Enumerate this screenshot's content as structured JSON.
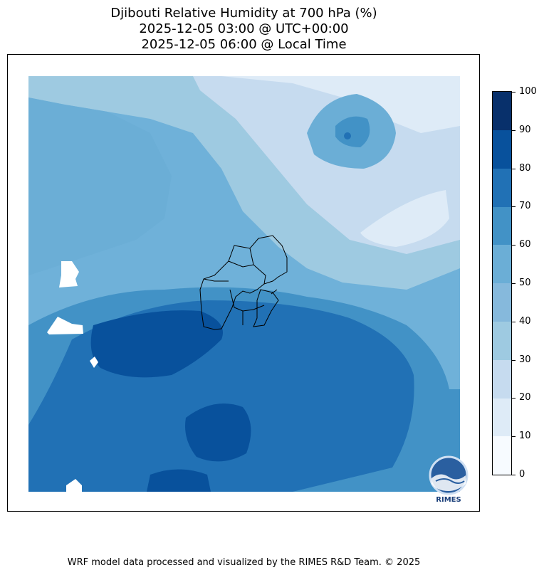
{
  "title": {
    "line1": "Djibouti Relative Humidity at 700 hPa (%)",
    "line2": "2025-12-05 03:00 @ UTC+00:00",
    "line3": "2025-12-05 06:00 @ Local Time"
  },
  "colorbar": {
    "ticks": [
      "0",
      "10",
      "20",
      "30",
      "40",
      "50",
      "60",
      "70",
      "80",
      "90",
      "100"
    ],
    "colors": [
      "#f7fbff",
      "#deebf7",
      "#c6dbef",
      "#9ecae1",
      "#86b9dc",
      "#6baed6",
      "#4292c6",
      "#2171b5",
      "#08519c",
      "#08306b"
    ]
  },
  "logo": {
    "text": "RIMES"
  },
  "footer": "WRF model data processed and visualized by the RIMES R&D Team. © 2025"
}
